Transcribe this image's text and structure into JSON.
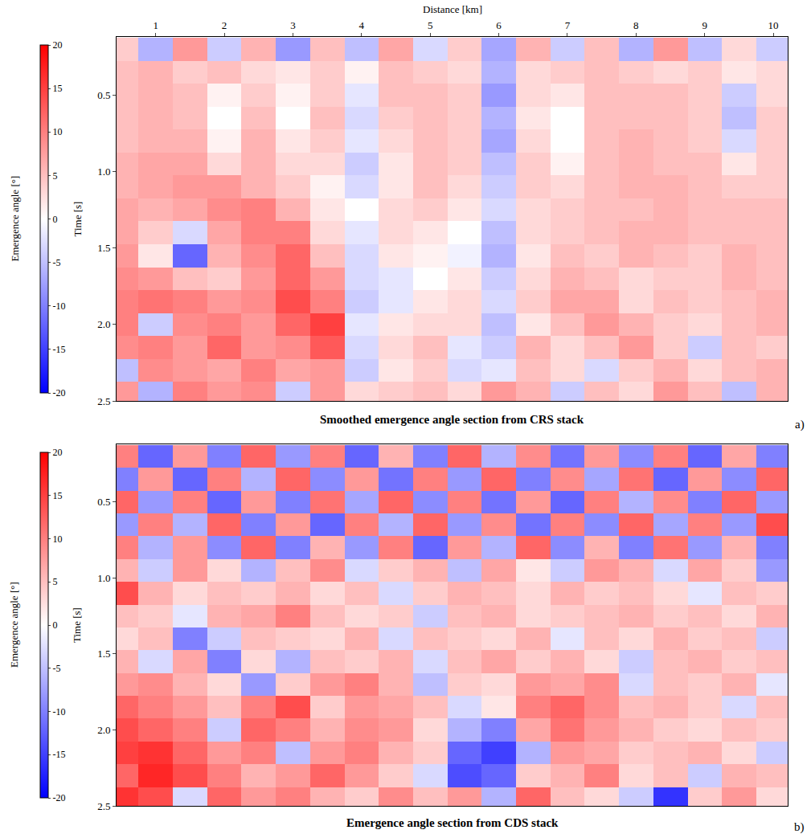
{
  "chart_data": [
    {
      "type": "heatmap",
      "title": "Smoothed emergence angle section from CRS stack",
      "label": "a)",
      "x_label": "Distance [km]",
      "y_label": "Time [s]",
      "xlim": [
        0.43,
        10.21
      ],
      "xticks": [
        1,
        2,
        3,
        4,
        5,
        6,
        7,
        8,
        9,
        10
      ],
      "ylim": [
        2.5,
        0.12
      ],
      "yticks": [
        0.5,
        {
          "value": 1,
          "label": "1.0"
        },
        1.5,
        {
          "value": 2,
          "label": "2.0"
        },
        2.5
      ],
      "colorbar": {
        "title": "Emergence angle [°]",
        "range": [
          -20,
          20
        ],
        "ticks": [
          -20,
          -15,
          -10,
          -5,
          0,
          5,
          10,
          15,
          20
        ]
      },
      "x": [
        0.5,
        1.0,
        1.5,
        2.0,
        2.5,
        3.0,
        3.5,
        4.0,
        4.5,
        5.0,
        5.5,
        6.0,
        6.5,
        7.0,
        7.5,
        8.0,
        8.5,
        9.0,
        9.5,
        10.0
      ],
      "y": [
        0.2,
        0.35,
        0.5,
        0.65,
        0.8,
        0.95,
        1.1,
        1.25,
        1.4,
        1.55,
        1.7,
        1.85,
        2.0,
        2.15,
        2.3,
        2.45
      ],
      "z": [
        [
          4,
          -6,
          8,
          -4,
          6,
          -8,
          5,
          -5,
          7,
          -3,
          4,
          -7,
          6,
          -4,
          5,
          -6,
          8,
          -5,
          3,
          -4
        ],
        [
          5,
          6,
          4,
          5,
          3,
          2,
          4,
          1,
          5,
          4,
          3,
          -6,
          3,
          4,
          5,
          4,
          3,
          4,
          2,
          3
        ],
        [
          5,
          6,
          5,
          1,
          4,
          1,
          4,
          -2,
          5,
          5,
          4,
          -8,
          3,
          2,
          5,
          5,
          5,
          4,
          -4,
          3
        ],
        [
          5,
          6,
          5,
          0,
          5,
          0,
          5,
          -3,
          4,
          5,
          4,
          -6,
          2,
          0,
          5,
          5,
          5,
          4,
          -5,
          4
        ],
        [
          5,
          6,
          6,
          1,
          6,
          2,
          4,
          -2,
          3,
          5,
          4,
          -7,
          3,
          0,
          5,
          6,
          5,
          4,
          -3,
          4
        ],
        [
          6,
          7,
          7,
          3,
          6,
          3,
          3,
          -4,
          2,
          5,
          4,
          -5,
          4,
          1,
          5,
          6,
          5,
          5,
          2,
          4
        ],
        [
          6,
          7,
          8,
          8,
          6,
          4,
          1,
          -3,
          2,
          5,
          3,
          -4,
          4,
          3,
          5,
          6,
          6,
          5,
          4,
          4
        ],
        [
          7,
          6,
          7,
          9,
          10,
          6,
          2,
          0,
          3,
          4,
          2,
          -3,
          3,
          4,
          5,
          5,
          6,
          5,
          5,
          5
        ],
        [
          7,
          4,
          -3,
          7,
          10,
          10,
          3,
          -2,
          3,
          2,
          0,
          -5,
          3,
          4,
          5,
          6,
          6,
          5,
          5,
          5
        ],
        [
          8,
          2,
          -12,
          6,
          9,
          12,
          5,
          -3,
          2,
          1,
          -1,
          -6,
          2,
          5,
          4,
          6,
          5,
          4,
          6,
          5
        ],
        [
          9,
          8,
          5,
          4,
          8,
          12,
          8,
          -3,
          -2,
          0,
          2,
          -4,
          3,
          6,
          5,
          3,
          4,
          4,
          6,
          5
        ],
        [
          10,
          11,
          10,
          8,
          9,
          14,
          10,
          -4,
          -2,
          2,
          3,
          -3,
          4,
          7,
          7,
          3,
          5,
          4,
          5,
          6
        ],
        [
          10,
          -4,
          9,
          10,
          8,
          12,
          15,
          -2,
          2,
          3,
          3,
          -5,
          2,
          5,
          8,
          6,
          4,
          3,
          5,
          6
        ],
        [
          9,
          10,
          8,
          12,
          8,
          9,
          13,
          -3,
          3,
          5,
          -2,
          -4,
          6,
          3,
          5,
          8,
          4,
          -4,
          5,
          4
        ],
        [
          -5,
          9,
          8,
          7,
          10,
          7,
          8,
          -4,
          2,
          4,
          -3,
          -2,
          5,
          3,
          -3,
          4,
          6,
          3,
          5,
          6
        ],
        [
          8,
          -6,
          10,
          8,
          9,
          -4,
          8,
          3,
          4,
          5,
          3,
          8,
          6,
          -4,
          5,
          3,
          8,
          5,
          -5,
          6
        ]
      ]
    },
    {
      "type": "heatmap",
      "title": "Emergence angle section from CDS stack",
      "label": "b)",
      "y_label": "Time [s]",
      "tick_labels": "y",
      "xlim": [
        0.43,
        10.21
      ],
      "ylim": [
        2.5,
        0.12
      ],
      "yticks": [
        0.5,
        {
          "value": 1,
          "label": "1.0"
        },
        1.5,
        {
          "value": 2,
          "label": "2.0"
        },
        2.5
      ],
      "colorbar": {
        "title": "Emergence angle [°]",
        "range": [
          -20,
          20
        ],
        "ticks": [
          -20,
          -15,
          -10,
          -5,
          0,
          5,
          10,
          15,
          20
        ]
      },
      "x": [
        0.5,
        1.0,
        1.5,
        2.0,
        2.5,
        3.0,
        3.5,
        4.0,
        4.5,
        5.0,
        5.5,
        6.0,
        6.5,
        7.0,
        7.5,
        8.0,
        8.5,
        9.0,
        9.5,
        10.0
      ],
      "y": [
        0.2,
        0.35,
        0.5,
        0.65,
        0.8,
        0.95,
        1.1,
        1.25,
        1.4,
        1.55,
        1.7,
        1.85,
        2.0,
        2.15,
        2.3,
        2.45
      ],
      "z": [
        [
          10,
          -12,
          8,
          -10,
          12,
          -8,
          10,
          -12,
          6,
          -10,
          12,
          -6,
          9,
          -11,
          8,
          -9,
          10,
          -12,
          7,
          -10
        ],
        [
          -10,
          8,
          -12,
          10,
          -6,
          12,
          -9,
          8,
          -11,
          10,
          -8,
          12,
          -10,
          9,
          -7,
          11,
          -12,
          8,
          -9,
          12
        ],
        [
          12,
          -8,
          10,
          -12,
          8,
          -10,
          11,
          -7,
          12,
          -9,
          10,
          -11,
          8,
          -12,
          10,
          -6,
          9,
          -10,
          12,
          -8
        ],
        [
          -8,
          10,
          -6,
          12,
          -10,
          8,
          -12,
          10,
          -6,
          12,
          -8,
          9,
          -11,
          10,
          -9,
          12,
          -7,
          10,
          -8,
          14
        ],
        [
          10,
          -6,
          8,
          -9,
          12,
          -10,
          6,
          -8,
          10,
          -12,
          8,
          -6,
          12,
          -9,
          6,
          -10,
          11,
          -8,
          6,
          -10
        ],
        [
          6,
          -4,
          8,
          3,
          -6,
          5,
          9,
          -3,
          4,
          6,
          -5,
          7,
          2,
          -4,
          8,
          6,
          -3,
          7,
          4,
          -8
        ],
        [
          14,
          6,
          3,
          5,
          4,
          6,
          3,
          5,
          -3,
          4,
          6,
          5,
          3,
          6,
          4,
          5,
          3,
          -2,
          5,
          4
        ],
        [
          5,
          4,
          -2,
          6,
          7,
          10,
          5,
          3,
          4,
          -4,
          5,
          6,
          3,
          4,
          5,
          6,
          4,
          5,
          3,
          6
        ],
        [
          3,
          5,
          -10,
          -4,
          5,
          4,
          3,
          6,
          -3,
          5,
          4,
          3,
          6,
          -2,
          5,
          3,
          6,
          4,
          5,
          -4
        ],
        [
          6,
          -3,
          7,
          -10,
          3,
          -6,
          5,
          4,
          6,
          -3,
          5,
          7,
          4,
          6,
          3,
          -4,
          5,
          6,
          4,
          5
        ],
        [
          8,
          9,
          6,
          3,
          -8,
          4,
          8,
          10,
          6,
          -5,
          4,
          3,
          8,
          7,
          9,
          -3,
          5,
          4,
          6,
          -2
        ],
        [
          12,
          10,
          8,
          5,
          10,
          14,
          4,
          8,
          7,
          5,
          -3,
          2,
          10,
          12,
          9,
          5,
          6,
          4,
          -3,
          5
        ],
        [
          14,
          12,
          10,
          -4,
          12,
          10,
          6,
          9,
          8,
          3,
          -6,
          -10,
          7,
          11,
          8,
          6,
          4,
          3,
          5,
          4
        ],
        [
          15,
          16,
          12,
          8,
          10,
          -5,
          8,
          10,
          6,
          4,
          -12,
          -15,
          -6,
          8,
          7,
          4,
          5,
          6,
          3,
          -4
        ],
        [
          12,
          17,
          14,
          10,
          6,
          8,
          12,
          8,
          4,
          -3,
          -14,
          -12,
          4,
          6,
          10,
          3,
          5,
          -4,
          6,
          5
        ],
        [
          16,
          14,
          -3,
          12,
          8,
          10,
          6,
          4,
          9,
          5,
          8,
          -6,
          12,
          5,
          3,
          -4,
          -16,
          4,
          8,
          3
        ]
      ]
    }
  ]
}
